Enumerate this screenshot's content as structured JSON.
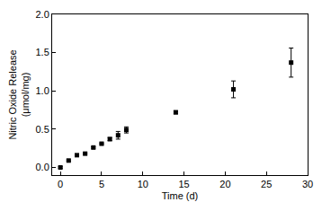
{
  "chart_data": {
    "type": "scatter",
    "xlabel": "Time (d)",
    "ylabel": "Nitric Oxide Release\n(μmol/mg)",
    "x": [
      0,
      1,
      2,
      3,
      4,
      5,
      6,
      7,
      8,
      14,
      21,
      28
    ],
    "values": [
      0.0,
      0.09,
      0.16,
      0.18,
      0.26,
      0.31,
      0.37,
      0.42,
      0.49,
      0.72,
      1.02,
      1.37
    ],
    "error": [
      0.01,
      0.01,
      0.01,
      0.01,
      0.01,
      0.01,
      0.02,
      0.05,
      0.04,
      0.02,
      0.11,
      0.19
    ],
    "color": "#000000",
    "marker": "square",
    "xlim": [
      -1,
      30
    ],
    "xticks": [
      0,
      5,
      10,
      15,
      20,
      25,
      30
    ],
    "ylim": [
      -0.1,
      2.0
    ],
    "yticks": [
      {
        "value": 0,
        "label": "0.0"
      },
      {
        "value": 0.5,
        "label": "0.5"
      },
      {
        "value": 1,
        "label": "1.0"
      },
      {
        "value": 1.5,
        "label": "1.5"
      },
      {
        "value": 2,
        "label": "2.0"
      }
    ],
    "grid": false
  }
}
